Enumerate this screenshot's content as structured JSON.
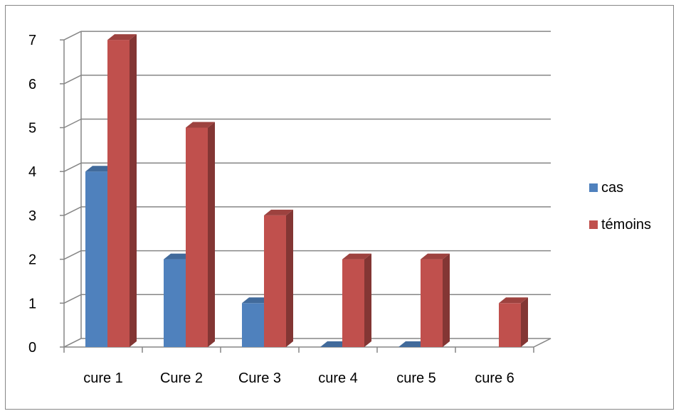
{
  "chart_data": {
    "type": "bar",
    "three_d": true,
    "categories": [
      "cure 1",
      "Cure 2",
      "Cure 3",
      "cure 4",
      "cure 5",
      "cure 6"
    ],
    "series": [
      {
        "name": "cas",
        "values": [
          4,
          2,
          1,
          0,
          0,
          null
        ],
        "color": "#4f81bd"
      },
      {
        "name": "témoins",
        "values": [
          7,
          5,
          3,
          2,
          2,
          1
        ],
        "color": "#c0504d"
      }
    ],
    "y_ticks": [
      0,
      1,
      2,
      3,
      4,
      5,
      6,
      7
    ],
    "ylim": [
      0,
      7
    ],
    "grid": true,
    "legend_position": "right"
  }
}
